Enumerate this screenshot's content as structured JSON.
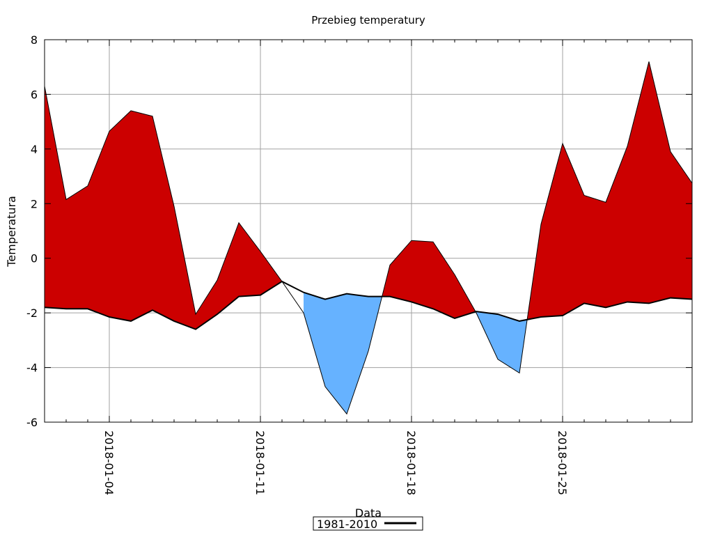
{
  "chart_data": {
    "type": "area",
    "title": "Przebieg temperatury",
    "xlabel": "Data",
    "ylabel": "Temperatura",
    "ylim": [
      -6,
      8
    ],
    "yticks": [
      -6,
      -4,
      -2,
      0,
      2,
      4,
      6,
      8
    ],
    "xlim": [
      "2018-01-01",
      "2018-01-31"
    ],
    "xtick_labels": [
      "2018-01-04",
      "2018-01-11",
      "2018-01-18",
      "2018-01-25"
    ],
    "grid": true,
    "legend": {
      "placement": "bottom-center",
      "entries": [
        "1981-2010"
      ]
    },
    "colors": {
      "above": "#cc0000",
      "below": "#66b2ff",
      "norm_line": "#000000",
      "grid": "#a0a0a0"
    },
    "x": [
      "2018-01-01",
      "2018-01-02",
      "2018-01-03",
      "2018-01-04",
      "2018-01-05",
      "2018-01-06",
      "2018-01-07",
      "2018-01-08",
      "2018-01-09",
      "2018-01-10",
      "2018-01-11",
      "2018-01-12",
      "2018-01-13",
      "2018-01-14",
      "2018-01-15",
      "2018-01-16",
      "2018-01-17",
      "2018-01-18",
      "2018-01-19",
      "2018-01-20",
      "2018-01-21",
      "2018-01-22",
      "2018-01-23",
      "2018-01-24",
      "2018-01-25",
      "2018-01-26",
      "2018-01-27",
      "2018-01-28",
      "2018-01-29",
      "2018-01-30",
      "2018-01-31"
    ],
    "series": [
      {
        "values": [
          6.3,
          2.15,
          2.65,
          4.65,
          5.4,
          5.2,
          1.9,
          -2.05,
          -0.8,
          1.3,
          0.25,
          -0.85,
          -2.0,
          -4.7,
          -5.7,
          -3.4,
          -0.25,
          0.65,
          0.6,
          -0.6,
          -2.0,
          -3.7,
          -4.2,
          1.25,
          4.2,
          2.3,
          2.05,
          4.1,
          7.2,
          3.9,
          2.75
        ]
      },
      {
        "name": "1981-2010",
        "values": [
          -1.8,
          -1.85,
          -1.85,
          -2.15,
          -2.3,
          -1.9,
          -2.3,
          -2.6,
          -2.05,
          -1.4,
          -1.35,
          -0.85,
          -1.25,
          -1.5,
          -1.3,
          -1.4,
          -1.4,
          -1.6,
          -1.85,
          -2.2,
          -1.95,
          -2.05,
          -2.3,
          -2.15,
          -2.1,
          -1.65,
          -1.8,
          -1.6,
          -1.65,
          -1.45,
          -1.5
        ]
      }
    ]
  }
}
